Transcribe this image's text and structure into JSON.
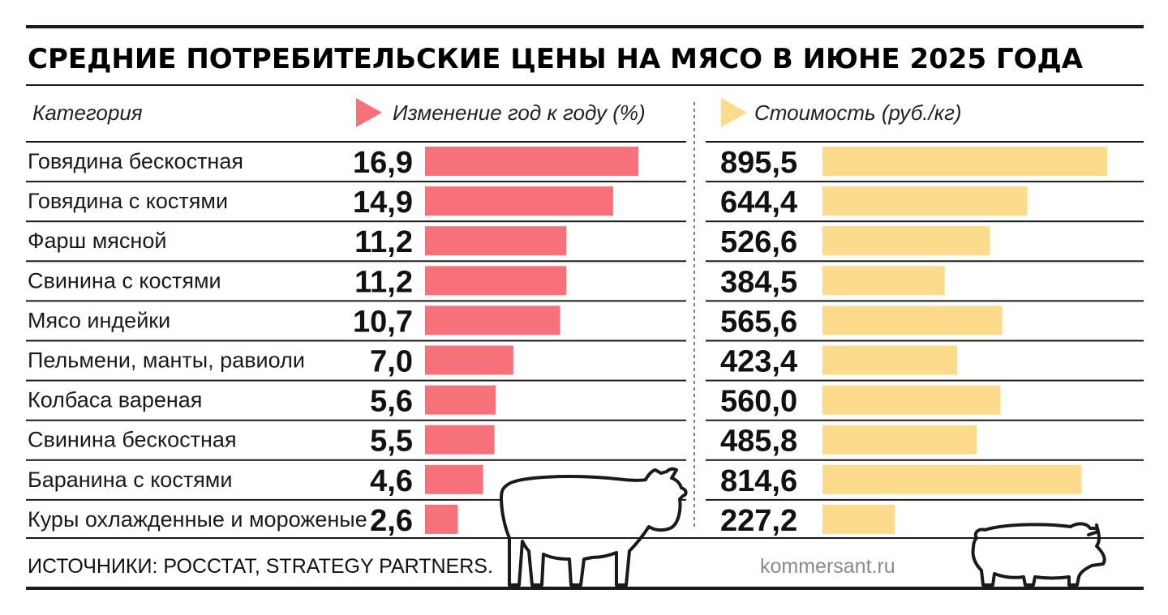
{
  "title": "СРЕДНИЕ ПОТРЕБИТЕЛЬСКИЕ ЦЕНЫ НА МЯСО В ИЮНЕ 2025 ГОДА",
  "headers": {
    "category": "Категория",
    "change": "Изменение год к году (%)",
    "price": "Стоимость (руб./кг)"
  },
  "colors": {
    "change_bar": "#f7717a",
    "price_bar": "#fcdb8c",
    "line": "#1a1a1a"
  },
  "footer": {
    "source": "ИСТОЧНИКИ: РОССТАТ, STRATEGY PARTNERS.",
    "site": "kommersant.ru"
  },
  "chart_data": {
    "type": "bar",
    "title": "СРЕДНИЕ ПОТРЕБИТЕЛЬСКИЕ ЦЕНЫ НА МЯСО В ИЮНЕ 2025 ГОДА",
    "categories": [
      "Говядина бескостная",
      "Говядина с костями",
      "Фарш мясной",
      "Свинина с костями",
      "Мясо индейки",
      "Пельмени, манты, равиоли",
      "Колбаса вареная",
      "Свинина бескостная",
      "Баранина с костями",
      "Куры охлажденные и мороженые"
    ],
    "series": [
      {
        "name": "Изменение год к году (%)",
        "values": [
          16.9,
          14.9,
          11.2,
          11.2,
          10.7,
          7.0,
          5.6,
          5.5,
          4.6,
          2.6
        ],
        "labels": [
          "16,9",
          "14,9",
          "11,2",
          "11,2",
          "10,7",
          "7,0",
          "5,6",
          "5,5",
          "4,6",
          "2,6"
        ]
      },
      {
        "name": "Стоимость (руб./кг)",
        "values": [
          895.5,
          644.4,
          526.6,
          384.5,
          565.6,
          423.4,
          560.0,
          485.8,
          814.6,
          227.2
        ],
        "labels": [
          "895,5",
          "644,4",
          "526,6",
          "384,5",
          "565,6",
          "423,4",
          "560,0",
          "485,8",
          "814,6",
          "227,2"
        ]
      }
    ],
    "change_max": 16.9,
    "price_max": 895.5
  }
}
